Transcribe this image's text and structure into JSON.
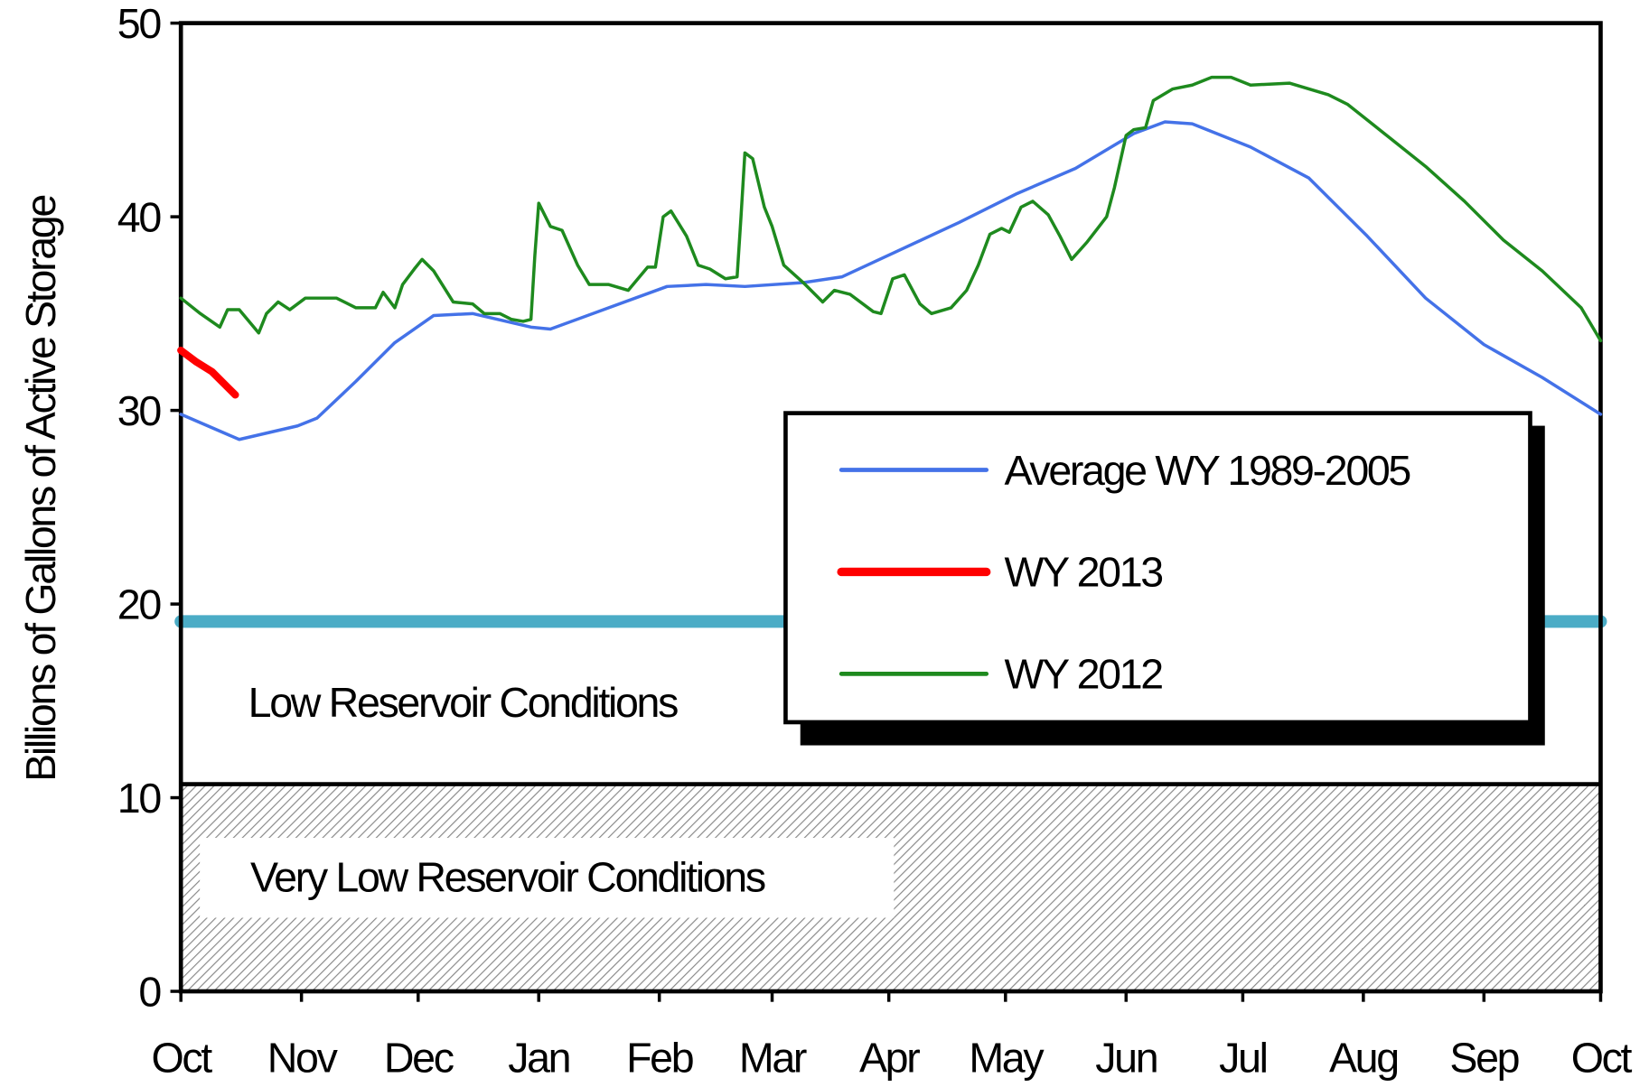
{
  "chart_data": {
    "type": "line",
    "y_label": "Billions of Gallons  of  Active Storage",
    "ylim": [
      0,
      50
    ],
    "yticks": [
      0,
      10,
      20,
      30,
      40,
      50
    ],
    "xlim": [
      0,
      365
    ],
    "xticks": [
      {
        "value": 0,
        "label": "Oct"
      },
      {
        "value": 31,
        "label": "Nov"
      },
      {
        "value": 61,
        "label": "Dec"
      },
      {
        "value": 92,
        "label": "Jan"
      },
      {
        "value": 123,
        "label": "Feb"
      },
      {
        "value": 152,
        "label": "Mar"
      },
      {
        "value": 182,
        "label": "Apr"
      },
      {
        "value": 212,
        "label": "May"
      },
      {
        "value": 243,
        "label": "Jun"
      },
      {
        "value": 273,
        "label": "Jul"
      },
      {
        "value": 304,
        "label": "Aug"
      },
      {
        "value": 335,
        "label": "Sep"
      },
      {
        "value": 365,
        "label": "Oct"
      }
    ],
    "series": [
      {
        "name": "Average WY 1989-2005",
        "color": "#4472e8",
        "width": 3,
        "x": [
          0,
          15,
          30,
          35,
          45,
          55,
          65,
          75,
          90,
          95,
          110,
          125,
          135,
          145,
          160,
          170,
          185,
          200,
          215,
          230,
          245,
          253,
          260,
          275,
          290,
          305,
          320,
          335,
          350,
          365
        ],
        "values": [
          29.8,
          28.5,
          29.2,
          29.6,
          31.5,
          33.5,
          34.9,
          35,
          34.3,
          34.2,
          35.3,
          36.4,
          36.5,
          36.4,
          36.6,
          36.9,
          38.3,
          39.7,
          41.2,
          42.5,
          44.3,
          44.9,
          44.8,
          43.6,
          42,
          39,
          35.8,
          33.4,
          31.7,
          29.8
        ]
      },
      {
        "name": "WY 2013",
        "color": "#ff0000",
        "width": 7,
        "x": [
          0,
          4,
          8,
          12,
          14
        ],
        "values": [
          33.1,
          32.5,
          32,
          31.2,
          30.8
        ]
      },
      {
        "name": "WY 2012",
        "color": "#1e8a1e",
        "width": 3,
        "x": [
          0,
          5,
          10,
          12,
          15,
          20,
          22,
          25,
          28,
          32,
          40,
          45,
          50,
          52,
          55,
          57,
          60,
          62,
          65,
          70,
          75,
          78,
          82,
          85,
          88,
          90,
          91,
          92,
          95,
          98,
          102,
          105,
          110,
          115,
          120,
          122,
          124,
          126,
          130,
          133,
          136,
          140,
          143,
          144,
          145,
          147,
          150,
          152,
          155,
          160,
          165,
          168,
          172,
          178,
          180,
          183,
          186,
          190,
          193,
          198,
          202,
          205,
          208,
          211,
          213,
          216,
          219,
          223,
          226,
          229,
          233,
          238,
          240,
          243,
          245,
          248,
          250,
          255,
          260,
          265,
          270,
          275,
          285,
          295,
          300,
          310,
          320,
          330,
          340,
          350,
          360,
          365
        ],
        "values": [
          35.8,
          35,
          34.3,
          35.2,
          35.2,
          34,
          35,
          35.6,
          35.2,
          35.8,
          35.8,
          35.3,
          35.3,
          36.1,
          35.3,
          36.5,
          37.3,
          37.8,
          37.2,
          35.6,
          35.5,
          35,
          35,
          34.7,
          34.6,
          34.7,
          38,
          40.7,
          39.5,
          39.3,
          37.5,
          36.5,
          36.5,
          36.2,
          37.4,
          37.4,
          40,
          40.3,
          39,
          37.5,
          37.3,
          36.8,
          36.9,
          40,
          43.3,
          43,
          40.5,
          39.5,
          37.5,
          36.6,
          35.6,
          36.2,
          36,
          35.1,
          35,
          36.8,
          37,
          35.5,
          35,
          35.3,
          36.2,
          37.5,
          39.1,
          39.4,
          39.2,
          40.5,
          40.8,
          40.1,
          39,
          37.8,
          38.7,
          40,
          41.5,
          44.2,
          44.5,
          44.6,
          46,
          46.6,
          46.8,
          47.2,
          47.2,
          46.8,
          46.9,
          46.3,
          45.8,
          44.2,
          42.6,
          40.8,
          38.8,
          37.2,
          35.3,
          33.6
        ]
      }
    ],
    "reference_line": {
      "value": 19.1,
      "color": "#4bacc6"
    },
    "shaded_below": {
      "value": 10.7
    },
    "annotations": [
      "Low Reservoir Conditions",
      "Very Low Reservoir Conditions"
    ]
  }
}
